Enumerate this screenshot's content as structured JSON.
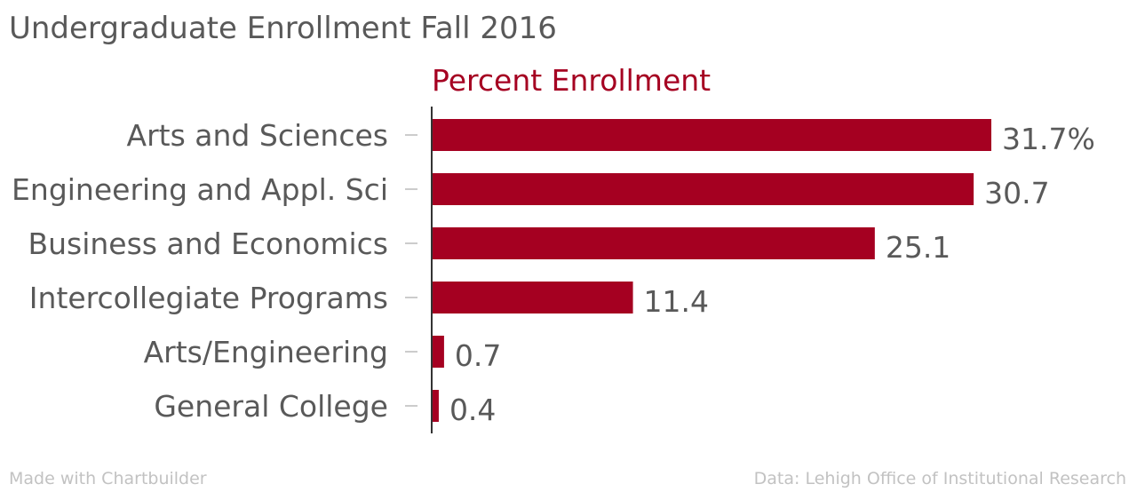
{
  "page": {
    "title": "Undergraduate Enrollment Fall 2016",
    "footer_left": "Made with Chartbuilder",
    "footer_right": "Data: Lehigh Office of Institutional Research"
  },
  "colors": {
    "bar": "#a50021",
    "series_label": "#a50021",
    "text": "#595959",
    "footer": "#c2c2c2",
    "tick": "#cccccc",
    "axis": "#333333"
  },
  "chart_data": {
    "type": "bar",
    "orientation": "horizontal",
    "title": "Undergraduate Enrollment Fall 2016",
    "categories": [
      "Arts and Sciences",
      "Engineering and Appl. Sci",
      "Business and Economics",
      "Intercollegiate Programs",
      "Arts/Engineering",
      "General College"
    ],
    "series": [
      {
        "name": "Percent Enrollment",
        "values": [
          31.7,
          30.7,
          25.1,
          11.4,
          0.7,
          0.4
        ]
      }
    ],
    "data_labels": [
      "31.7%",
      "30.7",
      "25.1",
      "11.4",
      "0.7",
      "0.4"
    ],
    "xlim": [
      0,
      31.7
    ],
    "grid": false,
    "legend": "top"
  }
}
